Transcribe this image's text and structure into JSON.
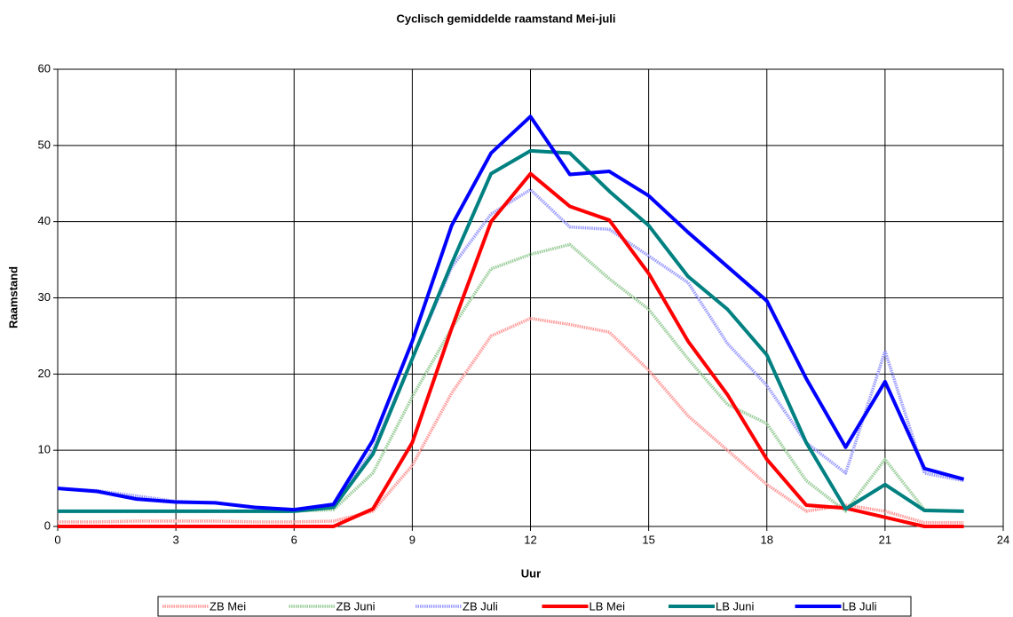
{
  "chart_data": {
    "type": "line",
    "title": "Cyclisch gemiddelde raamstand Mei-juli",
    "x_label": "Uur",
    "y_label": "Raamstand",
    "x": [
      0,
      1,
      2,
      3,
      4,
      5,
      6,
      7,
      8,
      9,
      10,
      11,
      12,
      13,
      14,
      15,
      16,
      17,
      18,
      19,
      20,
      21,
      22,
      23
    ],
    "xlim": [
      0,
      24
    ],
    "xticks": [
      0,
      3,
      6,
      9,
      12,
      15,
      18,
      21,
      24
    ],
    "ylim": [
      0,
      60
    ],
    "yticks": [
      0,
      10,
      20,
      30,
      40,
      50,
      60
    ],
    "grid": true,
    "legend": "bottom",
    "series": [
      {
        "name": "ZB Mei",
        "color": "#ff9999",
        "pattern": "hatched",
        "values": [
          0.6,
          0.6,
          0.7,
          0.7,
          0.7,
          0.6,
          0.6,
          0.7,
          2,
          8,
          17.5,
          25,
          27.3,
          26.5,
          25.5,
          20.5,
          14.5,
          10,
          5.5,
          2,
          2.8,
          2,
          0.5,
          0.5
        ]
      },
      {
        "name": "ZB Juni",
        "color": "#99cc99",
        "pattern": "hatched",
        "values": [
          2,
          2,
          2,
          2,
          2,
          2,
          2,
          2.2,
          7,
          17,
          26,
          33.8,
          35.7,
          37,
          32.5,
          28.5,
          22,
          16,
          13.5,
          6,
          2,
          8.8,
          2.2,
          2
        ]
      },
      {
        "name": "ZB Juli",
        "color": "#9999ff",
        "pattern": "hatched",
        "values": [
          5,
          4.7,
          4,
          3.3,
          3.1,
          2.5,
          2.2,
          2.8,
          10,
          22,
          34,
          41,
          44.2,
          39.3,
          39,
          35.5,
          32,
          24,
          18.5,
          11,
          7,
          23,
          7,
          6
        ]
      },
      {
        "name": "LB Mei",
        "color": "#ff0000",
        "pattern": "solid",
        "values": [
          0,
          0,
          0,
          0,
          0,
          0,
          0,
          0,
          2.3,
          11,
          26,
          40,
          46.3,
          42,
          40.2,
          33.2,
          24.3,
          17.3,
          8.8,
          2.8,
          2.4,
          1.2,
          0,
          0
        ]
      },
      {
        "name": "LB Juni",
        "color": "#008080",
        "pattern": "solid",
        "values": [
          2,
          2,
          2,
          2,
          2,
          2,
          2,
          2.5,
          9.5,
          22,
          34.5,
          46.3,
          49.3,
          49,
          44,
          39.5,
          32.8,
          28.5,
          22.5,
          11,
          2.3,
          5.5,
          2.1,
          2
        ]
      },
      {
        "name": "LB Juli",
        "color": "#0000ff",
        "pattern": "solid",
        "values": [
          5,
          4.6,
          3.6,
          3.2,
          3.1,
          2.5,
          2.2,
          2.9,
          11.3,
          24.3,
          39.5,
          49,
          53.8,
          46.2,
          46.6,
          43.4,
          38.6,
          34.1,
          29.6,
          19.4,
          10.4,
          19,
          7.6,
          6.2
        ]
      }
    ]
  }
}
